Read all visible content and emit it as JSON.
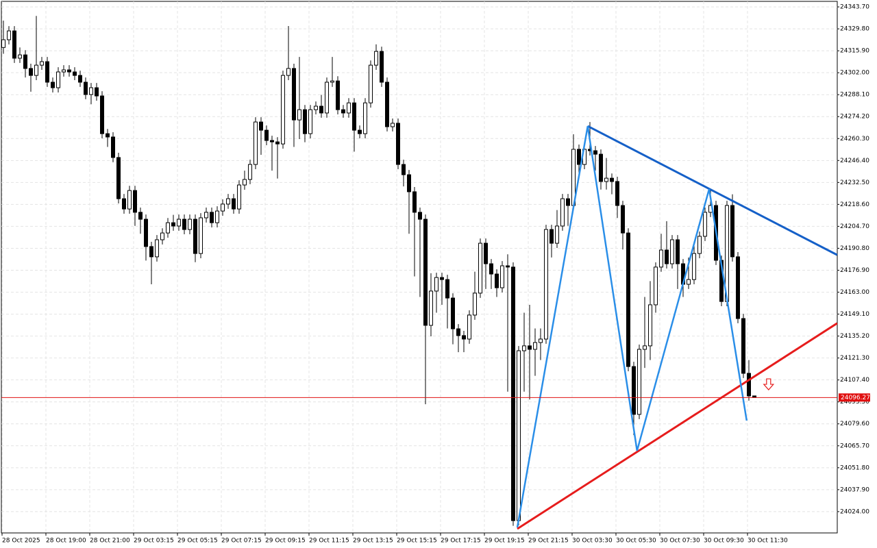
{
  "chart_data": {
    "type": "candlestick",
    "categories": [
      "28 Oct 2025",
      null,
      null,
      null,
      null,
      null,
      null,
      null,
      "28 Oct 19:00",
      null,
      null,
      null,
      null,
      null,
      null,
      null,
      "28 Oct 21:00",
      null,
      null,
      null,
      null,
      null,
      null,
      null,
      "29 Oct 03:15",
      null,
      null,
      null,
      null,
      null,
      null,
      null,
      "29 Oct 05:15",
      null,
      null,
      null,
      null,
      null,
      null,
      null,
      "29 Oct 07:15",
      null,
      null,
      null,
      null,
      null,
      null,
      null,
      "29 Oct 09:15",
      null,
      null,
      null,
      null,
      null,
      null,
      null,
      "29 Oct 11:15",
      null,
      null,
      null,
      null,
      null,
      null,
      null,
      "29 Oct 13:15",
      null,
      null,
      null,
      null,
      null,
      null,
      null,
      "29 Oct 15:15",
      null,
      null,
      null,
      null,
      null,
      null,
      null,
      "29 Oct 17:15",
      null,
      null,
      null,
      null,
      null,
      null,
      null,
      "29 Oct 19:15",
      null,
      null,
      null,
      null,
      null,
      null,
      null,
      "29 Oct 21:15",
      null,
      null,
      null,
      null,
      null,
      null,
      null,
      "30 Oct 03:30",
      null,
      null,
      null,
      null,
      null,
      null,
      null,
      "30 Oct 05:30",
      null,
      null,
      null,
      null,
      null,
      null,
      null,
      "30 Oct 07:30",
      null,
      null,
      null,
      null,
      null,
      null,
      null,
      "30 Oct 09:30",
      null,
      null,
      null,
      null,
      null,
      null,
      null,
      "30 Oct 11:30",
      null
    ],
    "open": [
      24318.0,
      24322.9,
      24328.5,
      24311.2,
      24313.3,
      24304.7,
      24300.3,
      24306.8,
      24309.0,
      24296.0,
      24292.5,
      24302.5,
      24303.8,
      24302.5,
      24300.3,
      24296.0,
      24288.2,
      24292.5,
      24287.3,
      24263.4,
      24261.3,
      24248.3,
      24222.2,
      24215.7,
      24227.4,
      24213.6,
      24209.2,
      24191.9,
      24185.4,
      24196.2,
      24200.5,
      24207.0,
      24204.9,
      24209.2,
      24202.7,
      24209.2,
      24187.5,
      24210.1,
      24213.6,
      24207.0,
      24214.4,
      24218.8,
      24222.2,
      24215.7,
      24230.9,
      24234.4,
      24243.9,
      24270.8,
      24265.6,
      24259.1,
      24258.2,
      24256.9,
      24300.3,
      24304.7,
      24272.1,
      24278.6,
      24263.4,
      24278.6,
      24280.8,
      24276.5,
      24296.0,
      24296.8,
      24278.6,
      24276.5,
      24282.9,
      24265.6,
      24263.4,
      24282.9,
      24306.8,
      24315.5,
      24296.0,
      24267.8,
      24270.0,
      24243.9,
      24237.4,
      24226.6,
      24213.6,
      24209.2,
      24142.0,
      24163.7,
      24172.3,
      24171.0,
      24159.3,
      24139.8,
      24135.5,
      24133.3,
      24148.5,
      24162.4,
      24194.0,
      24181.0,
      24174.5,
      24165.8,
      24179.7,
      24178.9,
      24018.3,
      24125.9,
      24129.0,
      24126.8,
      24131.1,
      24133.3,
      24202.7,
      24194.0,
      24204.9,
      24222.2,
      24217.9,
      24253.5,
      24243.9,
      24253.5,
      24252.6,
      24250.4,
      24233.1,
      24235.2,
      24233.1,
      24217.9,
      24200.5,
      24115.9,
      24085.6,
      24126.8,
      24129.0,
      24155.0,
      24178.9,
      24189.7,
      24181.0,
      24196.2,
      24181.0,
      24168.0,
      24171.0,
      24187.5,
      24198.4,
      24213.6,
      24217.9,
      24183.2,
      24157.1,
      24217.9,
      24185.4,
      24146.3,
      24111.6,
      24097.3
    ],
    "high": [
      24335.0,
      24331.5,
      24331.5,
      24318.0,
      24316.3,
      24307.7,
      24338.0,
      24312.0,
      24312.0,
      24299.0,
      24305.5,
      24306.8,
      24306.8,
      24305.5,
      24303.3,
      24299.0,
      24295.5,
      24295.5,
      24290.3,
      24266.4,
      24264.3,
      24251.3,
      24225.2,
      24230.4,
      24230.4,
      24216.6,
      24212.2,
      24194.9,
      24199.2,
      24203.5,
      24210.0,
      24212.0,
      24212.2,
      24212.2,
      24212.2,
      24212.2,
      24213.1,
      24216.6,
      24216.6,
      24217.4,
      24221.8,
      24225.2,
      24225.2,
      24233.9,
      24240.0,
      24246.9,
      24273.8,
      24273.8,
      24268.6,
      24262.1,
      24261.2,
      24303.3,
      24331.6,
      24307.7,
      24312.0,
      24281.6,
      24281.6,
      24283.8,
      24288.0,
      24299.0,
      24312.0,
      24299.8,
      24281.6,
      24285.9,
      24285.9,
      24268.6,
      24285.9,
      24309.8,
      24320.0,
      24318.5,
      24299.0,
      24273.0,
      24273.0,
      24246.9,
      24240.4,
      24229.6,
      24216.6,
      24212.2,
      24175.0,
      24175.3,
      24175.3,
      24174.0,
      24162.3,
      24142.8,
      24138.5,
      24151.5,
      24176.0,
      24197.0,
      24197.0,
      24184.0,
      24177.5,
      24182.7,
      24187.0,
      24181.9,
      24128.9,
      24150.0,
      24155.0,
      24140.0,
      24140.0,
      24205.7,
      24205.7,
      24215.0,
      24225.2,
      24225.2,
      24263.0,
      24256.5,
      24256.5,
      24270.8,
      24255.6,
      24253.4,
      24248.0,
      24238.2,
      24236.1,
      24220.9,
      24203.5,
      24118.9,
      24129.8,
      24160.0,
      24170.0,
      24181.9,
      24200.0,
      24208.0,
      24199.2,
      24199.2,
      24184.0,
      24185.0,
      24195.0,
      24201.4,
      24216.6,
      24228.0,
      24220.9,
      24186.2,
      24220.9,
      24225.0,
      24188.4,
      24149.3,
      24120.0,
      24097.3
    ],
    "low": [
      24314.0,
      24319.9,
      24308.2,
      24308.2,
      24299.0,
      24290.0,
      24297.3,
      24303.8,
      24293.0,
      24289.5,
      24289.5,
      24299.5,
      24299.5,
      24297.3,
      24293.0,
      24285.2,
      24282.0,
      24284.3,
      24260.4,
      24255.0,
      24245.3,
      24219.2,
      24212.7,
      24212.7,
      24205.0,
      24200.0,
      24183.0,
      24168.0,
      24182.4,
      24193.2,
      24197.5,
      24201.9,
      24201.9,
      24199.7,
      24199.7,
      24182.0,
      24184.5,
      24207.1,
      24204.0,
      24204.0,
      24211.4,
      24215.8,
      24212.7,
      24212.7,
      24227.9,
      24231.4,
      24240.9,
      24250.0,
      24256.1,
      24240.0,
      24235.0,
      24253.9,
      24297.3,
      24255.0,
      24260.0,
      24258.0,
      24260.4,
      24275.6,
      24273.5,
      24273.5,
      24293.0,
      24275.6,
      24273.5,
      24273.5,
      24252.0,
      24260.4,
      24260.4,
      24279.9,
      24303.8,
      24293.0,
      24264.8,
      24264.8,
      24240.9,
      24230.0,
      24200.0,
      24173.0,
      24160.0,
      24092.0,
      24135.0,
      24150.0,
      24155.0,
      24140.0,
      24130.0,
      24125.0,
      24125.0,
      24130.3,
      24145.5,
      24159.4,
      24165.0,
      24165.0,
      24160.0,
      24162.8,
      24100.0,
      24015.0,
      24015.3,
      24100.0,
      24095.0,
      24110.0,
      24120.0,
      24130.3,
      24185.0,
      24191.0,
      24201.9,
      24205.0,
      24214.9,
      24235.0,
      24240.9,
      24249.6,
      24240.0,
      24228.0,
      24228.0,
      24225.0,
      24210.0,
      24190.0,
      24112.9,
      24072.5,
      24082.6,
      24115.0,
      24120.0,
      24150.0,
      24175.9,
      24178.0,
      24178.0,
      24165.0,
      24160.0,
      24165.0,
      24168.0,
      24184.5,
      24195.4,
      24210.6,
      24180.2,
      24154.1,
      24154.1,
      24182.4,
      24143.3,
      24108.6,
      24094.3,
      24096.3
    ],
    "close": [
      24322.9,
      24328.5,
      24311.2,
      24313.3,
      24304.7,
      24300.3,
      24306.8,
      24309.0,
      24296.0,
      24292.5,
      24302.5,
      24303.8,
      24302.5,
      24300.3,
      24296.0,
      24288.2,
      24292.5,
      24287.3,
      24263.4,
      24261.3,
      24248.3,
      24222.2,
      24215.7,
      24227.4,
      24213.6,
      24209.2,
      24191.9,
      24185.4,
      24196.2,
      24200.5,
      24207.0,
      24204.9,
      24209.2,
      24202.7,
      24209.2,
      24187.5,
      24210.1,
      24213.6,
      24207.0,
      24214.4,
      24218.8,
      24222.2,
      24215.7,
      24230.9,
      24234.4,
      24243.9,
      24270.8,
      24265.6,
      24259.1,
      24258.2,
      24256.9,
      24300.3,
      24304.7,
      24272.1,
      24278.6,
      24263.4,
      24278.6,
      24280.8,
      24276.5,
      24296.0,
      24296.8,
      24278.6,
      24276.5,
      24282.9,
      24265.6,
      24263.4,
      24282.9,
      24306.8,
      24315.5,
      24296.0,
      24267.8,
      24270.0,
      24243.9,
      24237.4,
      24226.6,
      24213.6,
      24209.2,
      24142.0,
      24163.7,
      24172.3,
      24171.0,
      24159.3,
      24139.8,
      24135.5,
      24133.3,
      24148.5,
      24162.4,
      24194.0,
      24181.0,
      24174.5,
      24165.8,
      24179.7,
      24178.9,
      24018.3,
      24125.9,
      24129.0,
      24126.8,
      24131.1,
      24133.3,
      24202.7,
      24194.0,
      24204.9,
      24222.2,
      24217.9,
      24253.5,
      24243.9,
      24253.5,
      24252.6,
      24250.4,
      24233.1,
      24235.2,
      24233.1,
      24217.9,
      24200.5,
      24115.9,
      24085.6,
      24126.8,
      24129.0,
      24155.0,
      24178.9,
      24189.7,
      24181.0,
      24196.2,
      24181.0,
      24168.0,
      24171.0,
      24187.5,
      24198.4,
      24213.6,
      24217.9,
      24183.2,
      24157.1,
      24217.9,
      24185.4,
      24146.3,
      24111.6,
      24097.3,
      24096.3
    ],
    "ylim": [
      24010.5,
      24347.2
    ],
    "yticks": [
      {
        "value": 24343.7,
        "label": "24343.70"
      },
      {
        "value": 24329.8,
        "label": "24329.80"
      },
      {
        "value": 24315.9,
        "label": "24315.90"
      },
      {
        "value": 24302.0,
        "label": "24302.00"
      },
      {
        "value": 24288.1,
        "label": "24288.10"
      },
      {
        "value": 24274.2,
        "label": "24274.20"
      },
      {
        "value": 24260.3,
        "label": "24260.30"
      },
      {
        "value": 24246.4,
        "label": "24246.40"
      },
      {
        "value": 24232.5,
        "label": "24232.50"
      },
      {
        "value": 24218.6,
        "label": "24218.60"
      },
      {
        "value": 24204.7,
        "label": "24204.70"
      },
      {
        "value": 24190.8,
        "label": "24190.80"
      },
      {
        "value": 24176.9,
        "label": "24176.90"
      },
      {
        "value": 24163.0,
        "label": "24163.00"
      },
      {
        "value": 24149.1,
        "label": "24149.10"
      },
      {
        "value": 24135.2,
        "label": "24135.20"
      },
      {
        "value": 24121.3,
        "label": "24121.30"
      },
      {
        "value": 24107.4,
        "label": "24107.40"
      },
      {
        "value": 24093.5,
        "label": "24093.50"
      },
      {
        "value": 24079.6,
        "label": "24079.60"
      },
      {
        "value": 24065.7,
        "label": "24065.70"
      },
      {
        "value": 24051.8,
        "label": "24051.80"
      },
      {
        "value": 24037.9,
        "label": "24037.90"
      },
      {
        "value": 24024.0,
        "label": "24024.00"
      }
    ],
    "grid": true,
    "current_price": 24096.27,
    "current_price_color": "#e01010",
    "bull_color": "#ffffff",
    "bear_color": "#000000",
    "zigzag": {
      "color": "#2a8ee8",
      "x": [
        93.75,
        106.6,
        115.6,
        128.75,
        135.6
      ],
      "y": [
        24014.0,
        24268.2,
        24062.6,
        24228.3,
        24081.7
      ]
    },
    "resistance": {
      "color": "#1560c8",
      "x": [
        106.6,
        152.1
      ],
      "y": [
        24268.2,
        24186.6
      ]
    },
    "support": {
      "color": "#e61c1c",
      "x": [
        93.75,
        152.1
      ],
      "y": [
        24013.1,
        24143.3
      ]
    },
    "signal_arrow": {
      "direction": "down",
      "color": "#e61c1c",
      "x": 139.6,
      "y": 24104.2
    }
  }
}
